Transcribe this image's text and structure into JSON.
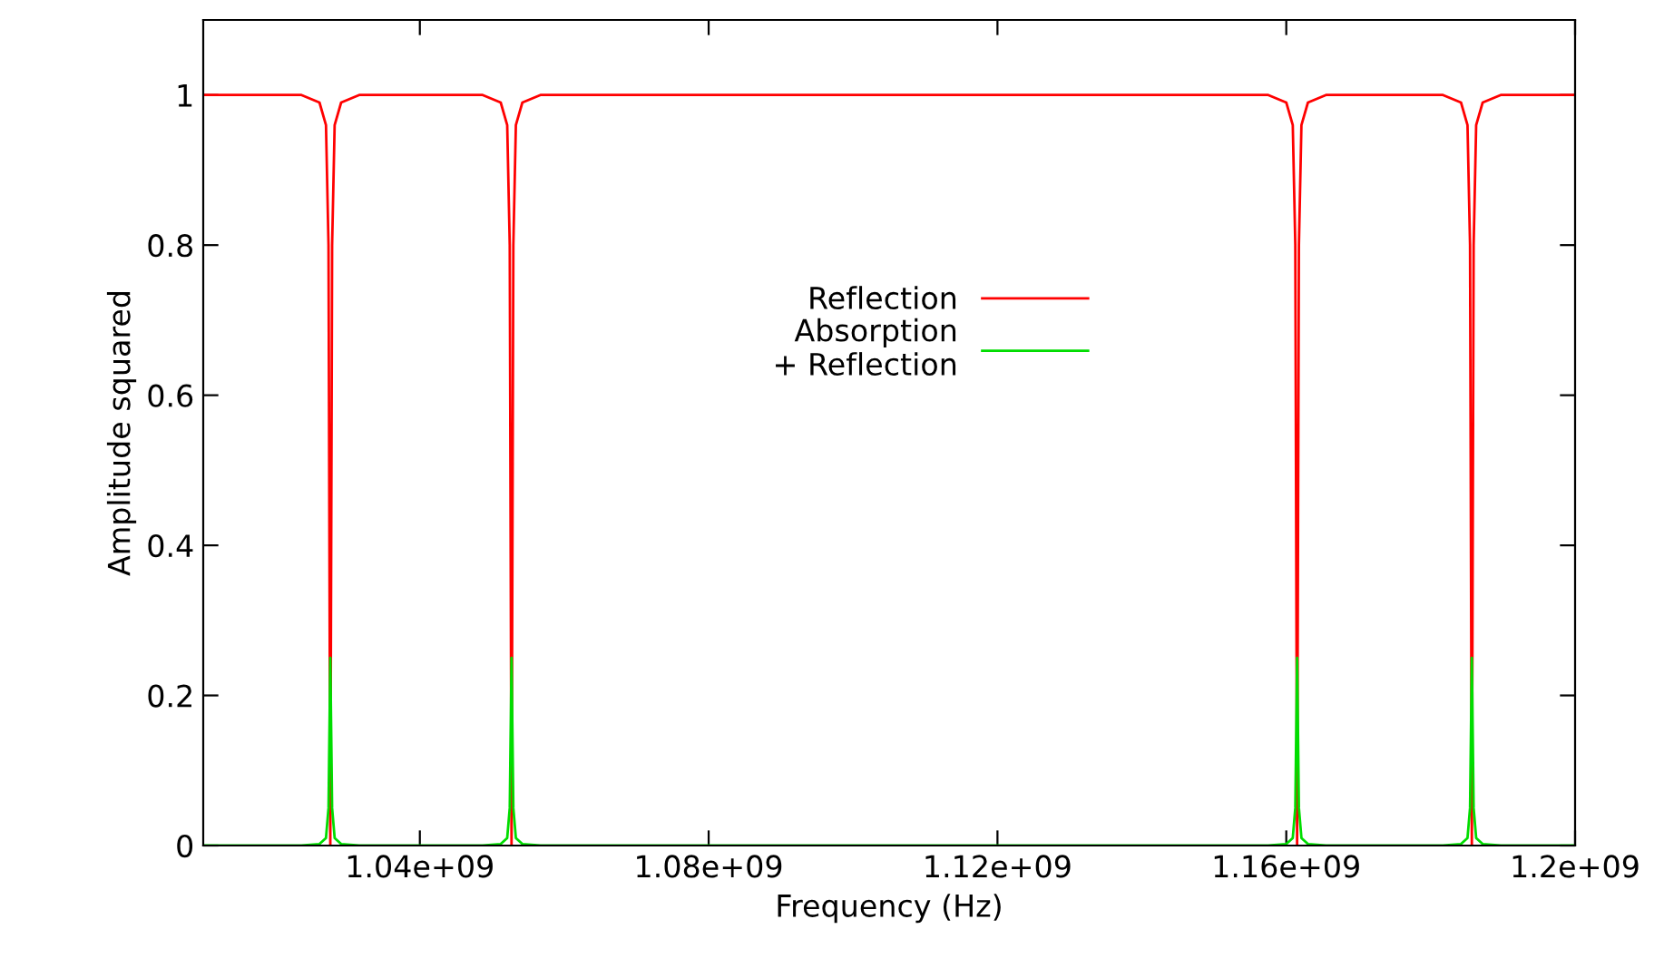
{
  "chart_data": {
    "type": "line",
    "xlabel": "Frequency (Hz)",
    "ylabel": "Amplitude squared",
    "x": [
      1010000000,
      1023600000,
      1026100000,
      1027000000,
      1027350000,
      1027600000,
      1027850000,
      1028200000,
      1029100000,
      1031600000,
      1048700000,
      1051200000,
      1052100000,
      1052450000,
      1052700000,
      1052950000,
      1053300000,
      1054200000,
      1056700000,
      1157500000,
      1160000000,
      1160900000,
      1161250000,
      1161500000,
      1161750000,
      1162100000,
      1163000000,
      1165500000,
      1181700000,
      1184200000,
      1185100000,
      1185450000,
      1185700000,
      1185950000,
      1186300000,
      1187200000,
      1189700000,
      1200000000
    ],
    "series": [
      {
        "name": "Reflection",
        "color": "#ff0000",
        "values": [
          1,
          1,
          0.99,
          0.96,
          0.8,
          0,
          0.8,
          0.96,
          0.99,
          1,
          1,
          0.99,
          0.96,
          0.8,
          0,
          0.8,
          0.96,
          0.99,
          1,
          1,
          0.99,
          0.96,
          0.8,
          0,
          0.8,
          0.96,
          0.99,
          1,
          1,
          0.99,
          0.96,
          0.8,
          0,
          0.8,
          0.96,
          0.99,
          1,
          1
        ]
      },
      {
        "name": "Absorption\n+ Reflection",
        "color": "#00dd00",
        "values": [
          0,
          0,
          0.002,
          0.01,
          0.05,
          0.25,
          0.05,
          0.01,
          0.002,
          0,
          0,
          0.002,
          0.01,
          0.05,
          0.25,
          0.05,
          0.01,
          0.002,
          0,
          0,
          0.002,
          0.01,
          0.05,
          0.25,
          0.05,
          0.01,
          0.002,
          0,
          0,
          0.002,
          0.01,
          0.05,
          0.25,
          0.05,
          0.01,
          0.002,
          0,
          0
        ]
      }
    ],
    "xlim": [
      1010000000,
      1200000000
    ],
    "xticks": [
      {
        "value": 1040000000,
        "label": "1.04e+09"
      },
      {
        "value": 1080000000,
        "label": "1.08e+09"
      },
      {
        "value": 1120000000,
        "label": "1.12e+09"
      },
      {
        "value": 1160000000,
        "label": "1.16e+09"
      },
      {
        "value": 1200000000,
        "label": "1.2e+09"
      }
    ],
    "ylim": [
      0,
      1.1
    ],
    "yticks": [
      0,
      0.2,
      0.4,
      0.6,
      0.8,
      1
    ],
    "grid": false,
    "legend": "center"
  }
}
